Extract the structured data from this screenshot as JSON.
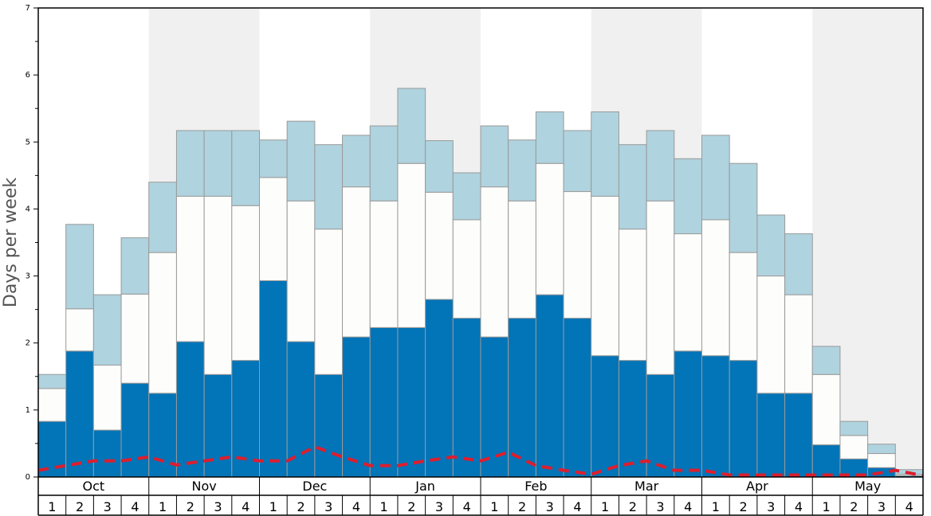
{
  "chart_data": {
    "type": "bar",
    "stacked": true,
    "ylabel": "Days per week",
    "ylim": [
      0,
      7
    ],
    "yticks": [
      "0",
      "1",
      "2",
      "3",
      "4",
      "5",
      "6",
      "7"
    ],
    "months": [
      "Oct",
      "Nov",
      "Dec",
      "Jan",
      "Feb",
      "Mar",
      "Apr",
      "May"
    ],
    "week_labels": [
      "1",
      "2",
      "3",
      "4"
    ],
    "shaded_months": [
      "Nov",
      "Jan",
      "Mar",
      "May"
    ],
    "colors": {
      "dark": "#0274b8",
      "middle": "#fdfdfb",
      "light": "#afd3df",
      "bar_edge": "#9a9a9a",
      "shade": "#f0f0f0",
      "line": "#dc1e2e"
    },
    "series": [
      {
        "key": "dark",
        "values": [
          0.83,
          1.88,
          0.7,
          1.4,
          1.25,
          2.02,
          1.53,
          1.74,
          2.93,
          2.02,
          1.53,
          2.09,
          2.23,
          2.23,
          2.65,
          2.37,
          2.09,
          2.37,
          2.72,
          2.37,
          1.81,
          1.74,
          1.53,
          1.88,
          1.81,
          1.74,
          1.25,
          1.25,
          0.48,
          0.27,
          0.14,
          0.02
        ]
      },
      {
        "key": "middle",
        "values": [
          0.49,
          0.63,
          0.97,
          1.33,
          2.1,
          2.17,
          2.66,
          2.31,
          1.54,
          2.1,
          2.17,
          2.24,
          1.89,
          2.45,
          1.6,
          1.47,
          2.24,
          1.75,
          1.96,
          1.89,
          2.38,
          1.96,
          2.59,
          1.75,
          2.03,
          1.61,
          1.75,
          1.47,
          1.05,
          0.35,
          0.21,
          0.02
        ]
      },
      {
        "key": "light",
        "values": [
          0.21,
          1.26,
          1.05,
          0.84,
          1.05,
          0.98,
          0.98,
          1.12,
          0.56,
          1.19,
          1.26,
          0.77,
          1.12,
          1.12,
          0.77,
          0.7,
          0.91,
          0.91,
          0.77,
          0.91,
          1.26,
          1.26,
          1.05,
          1.12,
          1.26,
          1.33,
          0.91,
          0.91,
          0.42,
          0.21,
          0.14,
          0.07
        ]
      }
    ],
    "line": [
      0.1,
      0.17,
      0.24,
      0.24,
      0.3,
      0.18,
      0.24,
      0.3,
      0.24,
      0.24,
      0.45,
      0.3,
      0.17,
      0.17,
      0.24,
      0.3,
      0.24,
      0.37,
      0.17,
      0.1,
      0.04,
      0.17,
      0.24,
      0.1,
      0.1,
      0.03,
      0.03,
      0.03,
      0.03,
      0.03,
      0.03,
      0.1,
      0.02
    ]
  }
}
